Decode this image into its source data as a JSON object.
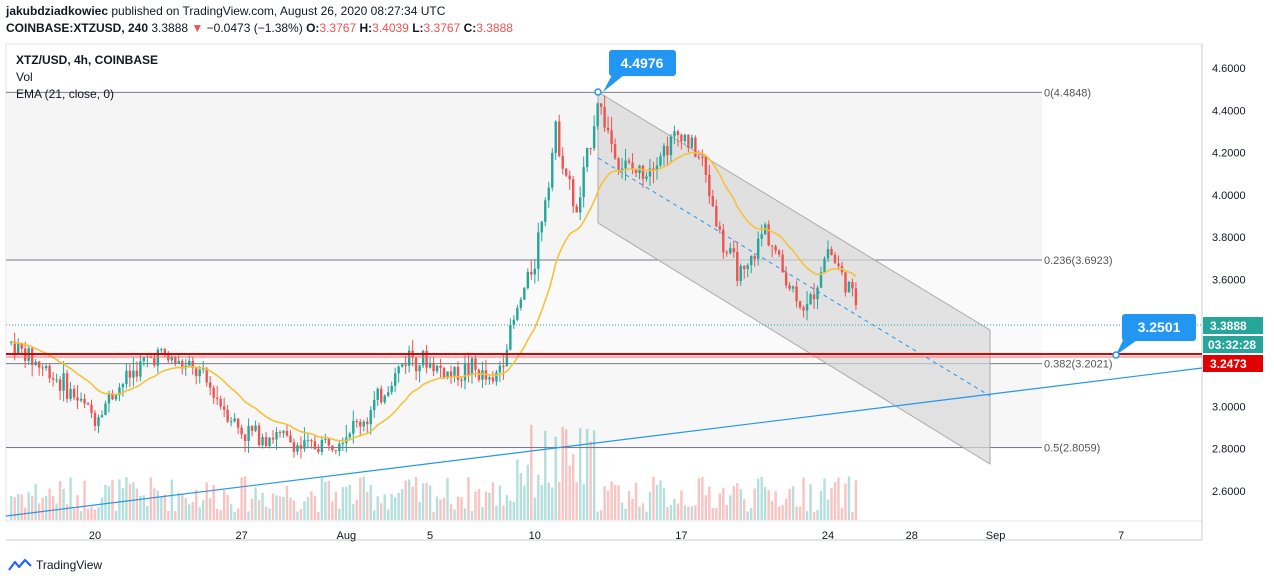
{
  "header": {
    "author": "jakubdziadkowiec",
    "published_text": "published on TradingView.com, August 26, 2020 08:27:34 UTC",
    "symbol_line": "COINBASE:XTZUSD, 240",
    "last": "3.3888",
    "change_arrow": "▼",
    "change": "−0.0473 (−1.38%)",
    "o_label": "O:",
    "o": "3.3767",
    "h_label": "H:",
    "h": "3.4039",
    "l_label": "L:",
    "l": "3.3767",
    "c_label": "C:",
    "c": "3.3888"
  },
  "legend": {
    "title": "XTZ/USD, 4h, COINBASE",
    "vol": "Vol",
    "ema": "EMA (21, close, 0)"
  },
  "footer": {
    "brand": "TradingView"
  },
  "colors": {
    "up": "#26a69a",
    "down": "#ef5350",
    "ema": "#f5c23a",
    "trendline": "#2196f3",
    "support": "#e00000",
    "channel": "#d6d6d6"
  },
  "chart_data": {
    "type": "candlestick",
    "symbol": "XTZ/USD",
    "timeframe": "4h",
    "exchange": "COINBASE",
    "y_axis": {
      "ticks": [
        "4.6000",
        "4.4000",
        "4.2000",
        "4.0000",
        "3.8000",
        "3.6000",
        "3.4000",
        "3.2000",
        "3.0000",
        "2.8000",
        "2.6000"
      ],
      "range": [
        2.45,
        4.7
      ]
    },
    "x_axis": {
      "ticks": [
        "20",
        "27",
        "Aug",
        "5",
        "10",
        "17",
        "24",
        "28",
        "Sep",
        "7"
      ]
    },
    "price_path": [
      [
        "Jul 16",
        3.3
      ],
      [
        "Jul 17",
        3.22
      ],
      [
        "Jul 18",
        3.15
      ],
      [
        "Jul 19",
        3.05
      ],
      [
        "Jul 20",
        2.95
      ],
      [
        "Jul 21",
        3.08
      ],
      [
        "Jul 22",
        3.18
      ],
      [
        "Jul 23",
        3.25
      ],
      [
        "Jul 24",
        3.2
      ],
      [
        "Jul 25",
        3.15
      ],
      [
        "Jul 26",
        3.02
      ],
      [
        "Jul 27",
        2.88
      ],
      [
        "Jul 28",
        2.87
      ],
      [
        "Jul 29",
        2.85
      ],
      [
        "Jul 30",
        2.8
      ],
      [
        "Jul 31",
        2.83
      ],
      [
        "Aug 1",
        2.88
      ],
      [
        "Aug 2",
        2.95
      ],
      [
        "Aug 3",
        3.1
      ],
      [
        "Aug 4",
        3.25
      ],
      [
        "Aug 5",
        3.2
      ],
      [
        "Aug 6",
        3.15
      ],
      [
        "Aug 7",
        3.18
      ],
      [
        "Aug 8",
        3.1
      ],
      [
        "Aug 9",
        3.4
      ],
      [
        "Aug 10",
        3.7
      ],
      [
        "Aug 11",
        4.3
      ],
      [
        "Aug 12",
        3.9
      ],
      [
        "Aug 13",
        4.45
      ],
      [
        "Aug 14",
        4.15
      ],
      [
        "Aug 15",
        4.1
      ],
      [
        "Aug 16",
        4.2
      ],
      [
        "Aug 17",
        4.3
      ],
      [
        "Aug 18",
        4.15
      ],
      [
        "Aug 19",
        3.75
      ],
      [
        "Aug 20",
        3.6
      ],
      [
        "Aug 21",
        3.85
      ],
      [
        "Aug 22",
        3.6
      ],
      [
        "Aug 23",
        3.45
      ],
      [
        "Aug 24",
        3.75
      ],
      [
        "Aug 25",
        3.55
      ],
      [
        "Aug 26",
        3.3888
      ]
    ],
    "ema": {
      "name": "EMA (21, close, 0)"
    },
    "last_price": "3.3888",
    "countdown": "03:32:28",
    "support_price": "3.2473",
    "annotations": {
      "high_label": "4.4976",
      "target_label": "3.2501"
    },
    "fib_levels": [
      {
        "label": "0(4.4848)",
        "price": 4.4848
      },
      {
        "label": "0.236(3.6923)",
        "price": 3.6923
      },
      {
        "label": "0.382(3.2021)",
        "price": 3.2021
      },
      {
        "label": "0.5(2.8059)",
        "price": 2.8059
      }
    ]
  }
}
